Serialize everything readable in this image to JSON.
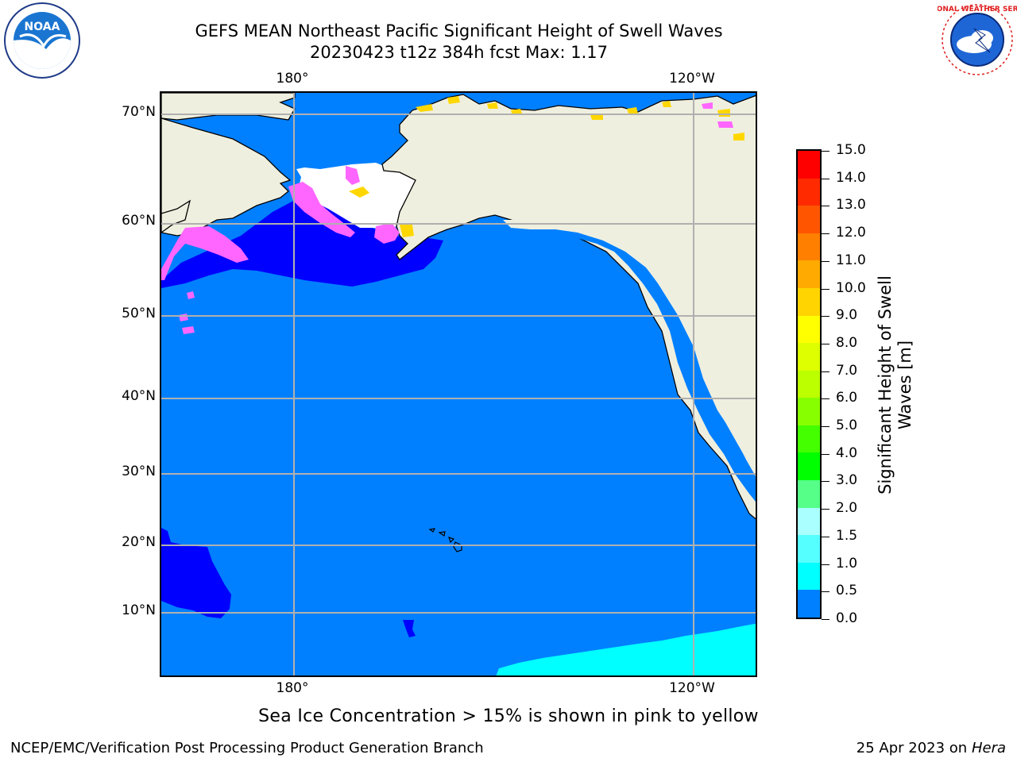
{
  "header": {
    "title_line1": "GEFS MEAN Northeast Pacific Significant Height of Swell Waves",
    "title_line2": "20230423 t12z 384h fcst   Max: 1.17"
  },
  "map": {
    "lon_labels": [
      "180°",
      "120°W"
    ],
    "lat_labels": [
      "70°N",
      "60°N",
      "50°N",
      "40°N",
      "30°N",
      "20°N",
      "10°N"
    ],
    "colors": {
      "ocean": "#0080ff",
      "low_swell": "#0000ff",
      "mid_swell": "#00ffff",
      "land": "#efefdf",
      "ice_pink": "#ff66ff",
      "ice_yellow": "#ffd700",
      "grid": "#b0b0b0"
    }
  },
  "colorbar": {
    "title": "Significant Height of Swell Waves [m]",
    "ticks": [
      "15.0",
      "14.0",
      "13.0",
      "12.0",
      "11.0",
      "10.0",
      "9.0",
      "8.0",
      "7.0",
      "6.0",
      "5.0",
      "4.0",
      "3.0",
      "2.0",
      "1.5",
      "1.0",
      "0.5",
      "0.0"
    ],
    "colors": [
      "#ff0000",
      "#ff2a00",
      "#ff5500",
      "#ff7f00",
      "#ffaa00",
      "#ffd400",
      "#ffff00",
      "#ddff00",
      "#bbff00",
      "#88ff00",
      "#44ff00",
      "#00ff00",
      "#55ff88",
      "#aaffff",
      "#55ffff",
      "#00ffff",
      "#0080ff",
      "#0000ff"
    ]
  },
  "note": "Sea Ice Concentration > 15% is shown in pink to yellow",
  "footer": {
    "left": "NCEP/EMC/Verification Post Processing Product Generation Branch",
    "right_prefix": "25 Apr 2023 on ",
    "right_host": "Hera"
  },
  "logos": {
    "noaa_text": "NOAA",
    "nws_text": "NATIONAL WEATHER SERVICE"
  }
}
